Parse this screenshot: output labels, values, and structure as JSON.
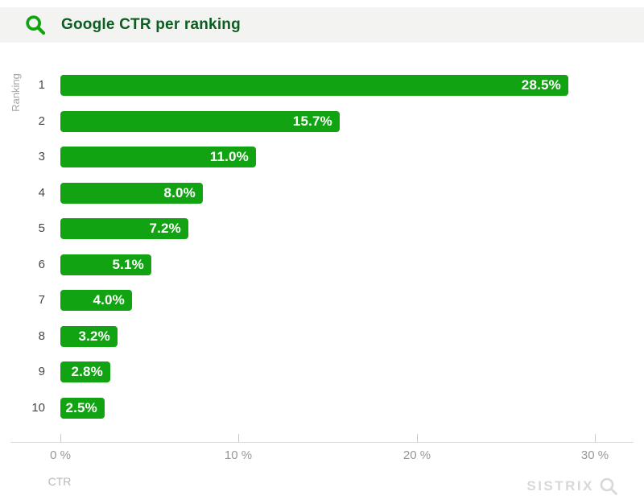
{
  "header": {
    "title": "Google CTR per ranking",
    "icon": "search-icon"
  },
  "chart_data": {
    "type": "bar",
    "orientation": "horizontal",
    "title": "Google CTR per ranking",
    "ylabel": "Ranking",
    "xlabel": "CTR",
    "categories": [
      "1",
      "2",
      "3",
      "4",
      "5",
      "6",
      "7",
      "8",
      "9",
      "10"
    ],
    "values": [
      28.5,
      15.7,
      11.0,
      8.0,
      7.2,
      5.1,
      4.0,
      3.2,
      2.8,
      2.5
    ],
    "value_labels": [
      "28.5%",
      "15.7%",
      "11.0%",
      "8.0%",
      "7.2%",
      "5.1%",
      "4.0%",
      "3.2%",
      "2.8%",
      "2.5%"
    ],
    "x_ticks": [
      {
        "value": 0,
        "label": "0 %"
      },
      {
        "value": 10,
        "label": "10 %"
      },
      {
        "value": 20,
        "label": "20 %"
      },
      {
        "value": 30,
        "label": "30 %"
      }
    ],
    "xlim": [
      0,
      32.5
    ],
    "grid": false,
    "legend": null,
    "value_labels_position": "inside-end"
  },
  "watermark": {
    "brand": "SISTRIX",
    "icon": "magnifier-icon"
  },
  "colors": {
    "bar_green": "#12a312",
    "icon_green": "#0fa50f",
    "title_green": "#0b5e20",
    "header_bg": "#f3f3f1",
    "axis_line": "#dcdcdc",
    "tick_mark": "#c9c9c9",
    "tick_label": "#979797",
    "rank_label": "#474747",
    "axis_title": "#a6a6a6",
    "watermark_gray": "#d8d8d8"
  }
}
